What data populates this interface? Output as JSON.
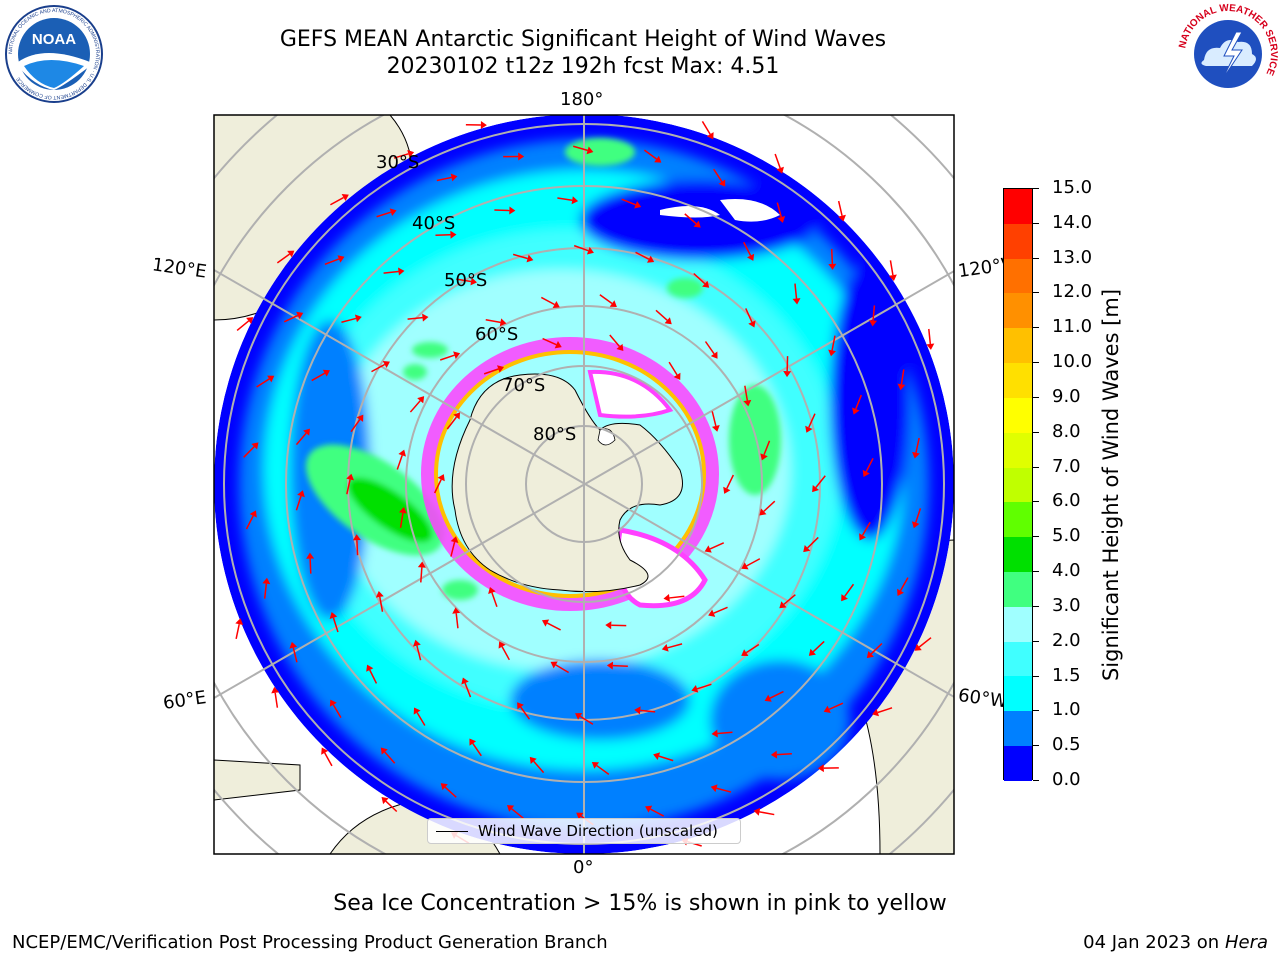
{
  "header": {
    "title_line1": "GEFS MEAN Antarctic Significant Height of Wind Waves",
    "title_line2": "20230102 t12z 192h fcst   Max: 4.51"
  },
  "logos": {
    "noaa": {
      "name": "noaa-logo",
      "text": "NOAA",
      "ring_text": "NATIONAL OCEANIC AND ATMOSPHERIC ADMINISTRATION · U.S. DEPARTMENT OF COMMERCE"
    },
    "nws": {
      "name": "nws-logo",
      "ring_text": "NATIONAL WEATHER SERVICE"
    }
  },
  "map": {
    "projection": "south-polar-stereographic",
    "longitude_labels": {
      "top": "180°",
      "bottom": "0°",
      "upper_left": "120°E",
      "upper_right": "120°W",
      "lower_left": "60°E",
      "lower_right": "60°W"
    },
    "latitude_labels": [
      "30°S",
      "40°S",
      "50°S",
      "60°S",
      "70°S",
      "80°S"
    ],
    "grid": true,
    "land_color": "#efeedb",
    "arrow_color": "#ff0000",
    "legend_label": "Wind Wave Direction (unscaled)"
  },
  "colorbar": {
    "title": "Significant Height of Wind Waves [m]",
    "tick_labels": [
      "0.0",
      "0.5",
      "1.0",
      "1.5",
      "2.0",
      "3.0",
      "4.0",
      "5.0",
      "6.0",
      "7.0",
      "8.0",
      "9.0",
      "10.0",
      "11.0",
      "12.0",
      "13.0",
      "14.0",
      "15.0"
    ],
    "colors": [
      "#0000ff",
      "#0080ff",
      "#00ffff",
      "#40ffff",
      "#a0ffff",
      "#40ff80",
      "#00e000",
      "#60ff00",
      "#c0ff00",
      "#e0ff00",
      "#ffff00",
      "#ffe000",
      "#ffc000",
      "#ff9000",
      "#ff7000",
      "#ff4000",
      "#ff0000"
    ]
  },
  "caption": "Sea Ice Concentration > 15% is shown in pink to yellow",
  "footer": {
    "left": "NCEP/EMC/Verification Post Processing Product Generation Branch",
    "right_date": "04 Jan 2023 on ",
    "right_host": "Hera"
  }
}
